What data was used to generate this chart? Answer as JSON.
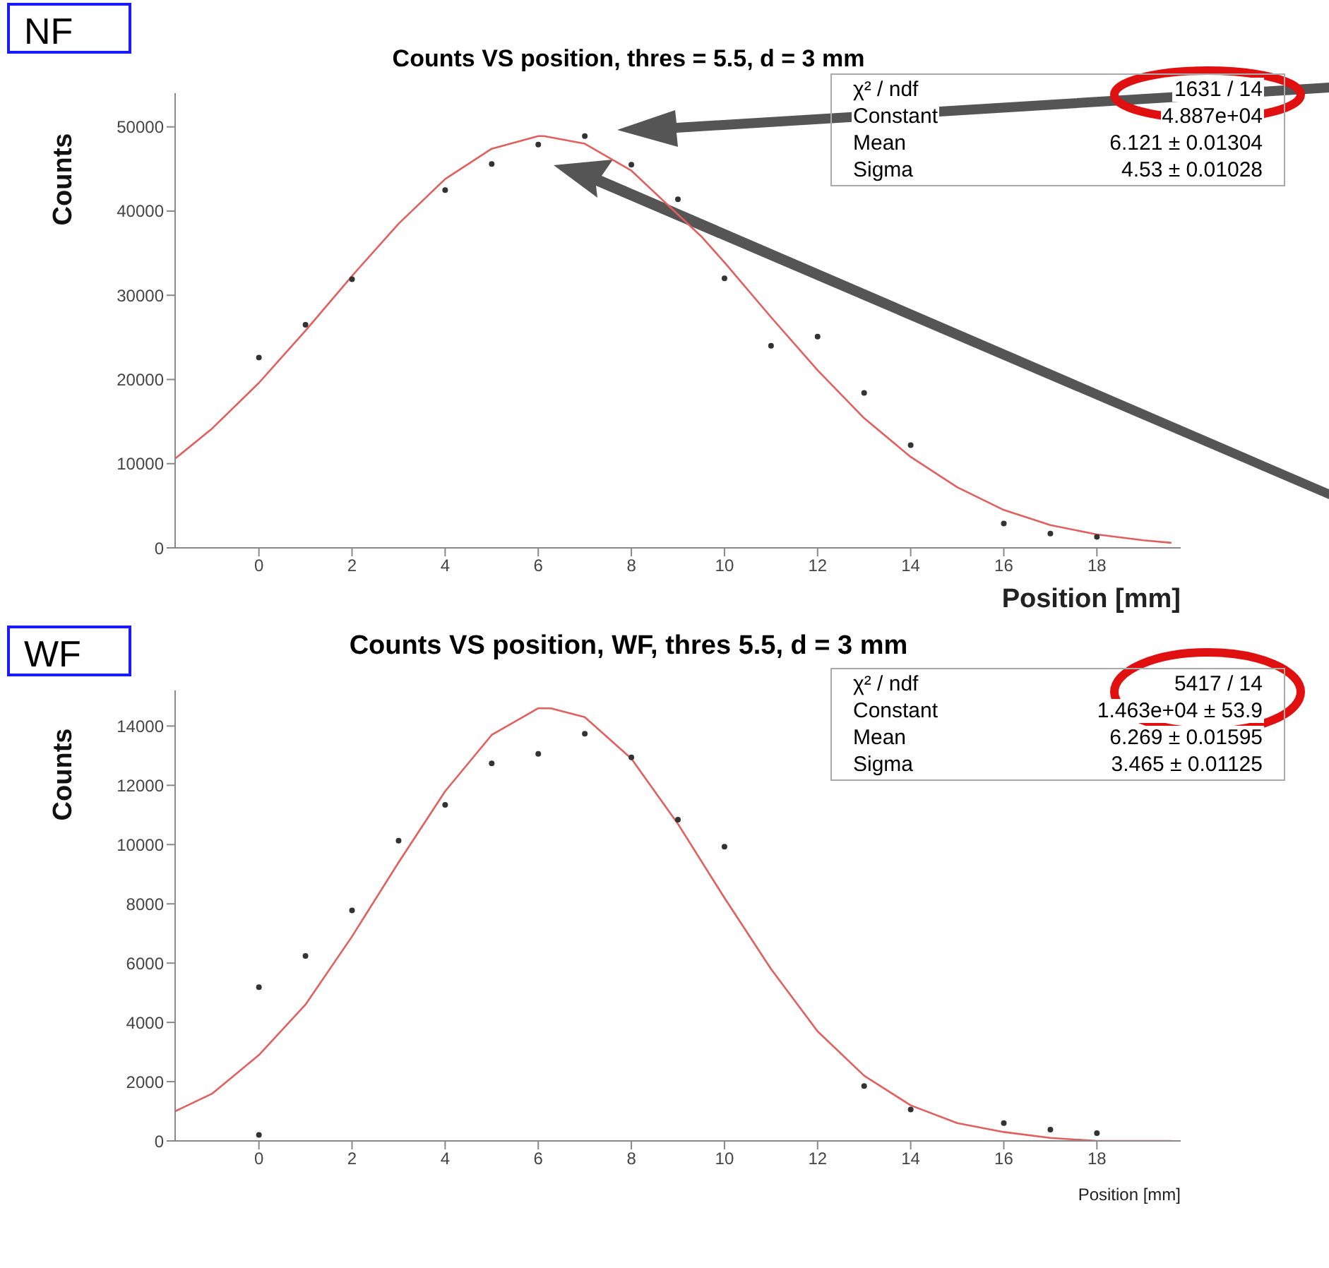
{
  "chart_data": [
    {
      "type": "scatter",
      "title": "Counts VS position, thres = 5.5, d = 3 mm",
      "xlabel": "Position [mm]",
      "ylabel": "Counts",
      "annotations": [
        "NF",
        "χ² / ndf",
        "1631 / 14",
        "Constant",
        "4.887e+04",
        "Mean",
        "6.121 ± 0.01304",
        "Sigma",
        "4.53 ± 0.01028"
      ],
      "xlim": [
        -1.8,
        19.8
      ],
      "xticks": [
        0,
        2,
        4,
        6,
        8,
        10,
        12,
        14,
        16,
        18
      ],
      "ylim": [
        0,
        54000
      ],
      "yticks": [
        0,
        10000,
        20000,
        30000,
        40000,
        50000
      ],
      "legend": false,
      "series": [
        {
          "type": "scatter",
          "color": "#333333",
          "marker": "circle",
          "x": [
            0,
            1,
            2,
            4,
            5,
            6,
            7,
            8,
            9,
            10,
            11,
            12,
            13,
            14,
            16,
            17,
            18
          ],
          "values": [
            22600,
            26500,
            31900,
            42500,
            45600,
            47900,
            48900,
            45500,
            41400,
            32000,
            24000,
            25100,
            18400,
            12200,
            2900,
            1700,
            1300
          ]
        },
        {
          "type": "line",
          "color": "#e06060",
          "marker": "none",
          "line_style": "solid",
          "x": [
            -1.8,
            -1,
            0,
            1,
            2,
            3,
            4,
            5,
            6,
            6.121,
            7,
            8,
            9.5,
            10,
            11,
            12,
            13,
            14,
            15,
            16,
            17,
            18,
            19,
            19.6
          ],
          "values": [
            10600,
            14200,
            19600,
            25800,
            32300,
            38500,
            43800,
            47400,
            48900,
            48900,
            48000,
            44800,
            37000,
            33900,
            27400,
            21100,
            15400,
            10800,
            7200,
            4500,
            2700,
            1600,
            900,
            600
          ]
        }
      ]
    },
    {
      "type": "scatter",
      "title": "Counts VS position, WF, thres 5.5, d = 3 mm",
      "xlabel": "Position [mm]",
      "ylabel": "Counts",
      "annotations": [
        "WF",
        "χ² / ndf",
        "5417 / 14",
        "Constant",
        "1.463e+04 ± 53.9",
        "Mean",
        "6.269 ± 0.01595",
        "Sigma",
        "3.465 ± 0.01125"
      ],
      "xlim": [
        -1.8,
        19.8
      ],
      "xticks": [
        0,
        2,
        4,
        6,
        8,
        10,
        12,
        14,
        16,
        18
      ],
      "ylim": [
        0,
        15200
      ],
      "yticks": [
        0,
        2000,
        4000,
        6000,
        8000,
        10000,
        12000,
        14000
      ],
      "legend": false,
      "series": [
        {
          "type": "scatter",
          "color": "#333333",
          "marker": "circle",
          "x": [
            0,
            0,
            1,
            2,
            3,
            4,
            5,
            6,
            7,
            8,
            9,
            10,
            13,
            14,
            16,
            17,
            18
          ],
          "values": [
            5190,
            200,
            6240,
            7780,
            10130,
            11340,
            12740,
            13060,
            13740,
            12940,
            10840,
            9930,
            1850,
            1060,
            600,
            380,
            260
          ]
        },
        {
          "type": "line",
          "color": "#e06060",
          "marker": "none",
          "line_style": "solid",
          "x": [
            -1.8,
            -1,
            0,
            1,
            2,
            3,
            4,
            5,
            6,
            6.269,
            7,
            8,
            9,
            10,
            11,
            12,
            13,
            14,
            15,
            16,
            17,
            18,
            19,
            19.6
          ],
          "values": [
            1000,
            1600,
            2900,
            4600,
            6900,
            9400,
            11800,
            13700,
            14600,
            14600,
            14300,
            12900,
            10700,
            8200,
            5800,
            3700,
            2200,
            1200,
            600,
            300,
            100,
            0,
            0,
            0
          ]
        }
      ]
    }
  ]
}
